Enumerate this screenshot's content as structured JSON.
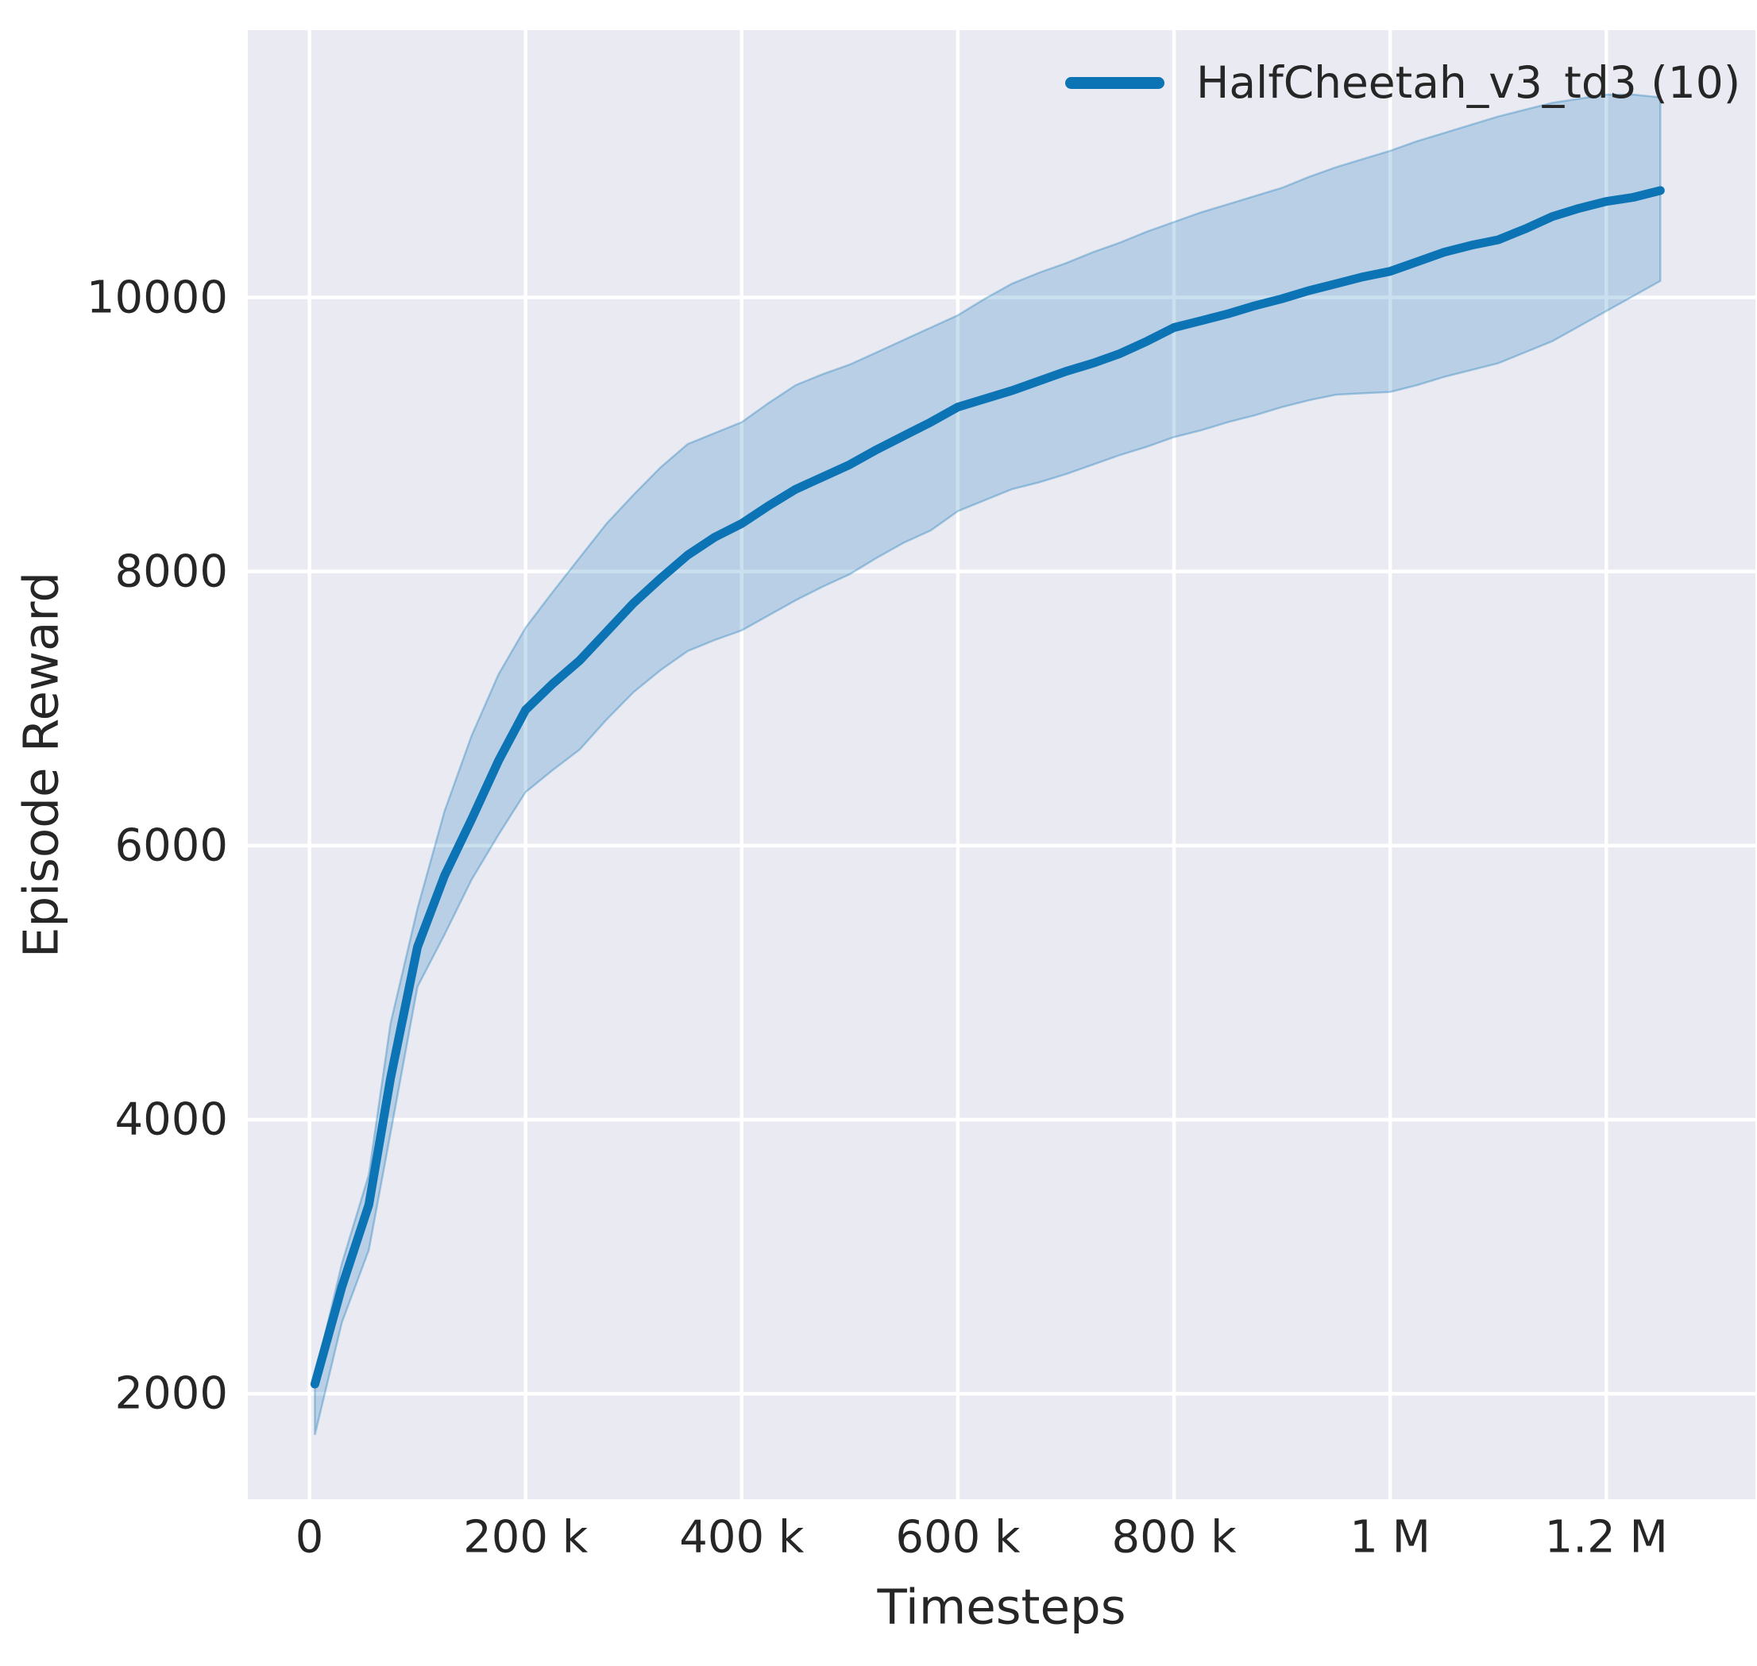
{
  "figure": {
    "xlabel": "Timesteps",
    "ylabel": "Episode Reward",
    "legend": {
      "label": "HalfCheetah_v3_td3 (10)"
    }
  },
  "chart_data": {
    "type": "line",
    "title": "",
    "xlabel": "Timesteps",
    "ylabel": "Episode Reward",
    "grid": true,
    "legend_position": "upper right",
    "plot_background": "#eaeaf2",
    "grid_color": "#ffffff",
    "text_color": "#262626",
    "xlim": [
      -57000,
      1338000
    ],
    "ylim": [
      1230,
      11950
    ],
    "x_ticks": [
      0,
      200000,
      400000,
      600000,
      800000,
      1000000,
      1200000
    ],
    "x_tick_labels": [
      "0",
      "200 k",
      "400 k",
      "600 k",
      "800 k",
      "1 M",
      "1.2 M"
    ],
    "y_ticks": [
      2000,
      4000,
      6000,
      8000,
      10000
    ],
    "y_tick_labels": [
      "2000",
      "4000",
      "6000",
      "8000",
      "10000"
    ],
    "series": [
      {
        "name": "HalfCheetah_v3_td3 (10)",
        "color": "#0c73b4",
        "band_fill_opacity": 0.22,
        "band_edge_opacity": 0.32,
        "x": [
          5000,
          30000,
          55000,
          75000,
          100000,
          125000,
          150000,
          175000,
          200000,
          225000,
          250000,
          275000,
          300000,
          325000,
          350000,
          375000,
          400000,
          425000,
          450000,
          475000,
          500000,
          525000,
          550000,
          575000,
          600000,
          625000,
          650000,
          675000,
          700000,
          725000,
          750000,
          775000,
          800000,
          825000,
          850000,
          875000,
          900000,
          925000,
          950000,
          975000,
          1000000,
          1025000,
          1050000,
          1075000,
          1100000,
          1125000,
          1150000,
          1175000,
          1200000,
          1225000,
          1250000
        ],
        "mean": [
          2070,
          2780,
          3380,
          4300,
          5260,
          5780,
          6190,
          6620,
          6990,
          7180,
          7350,
          7560,
          7770,
          7950,
          8120,
          8250,
          8350,
          8480,
          8600,
          8690,
          8780,
          8890,
          8990,
          9090,
          9200,
          9260,
          9320,
          9390,
          9460,
          9520,
          9590,
          9680,
          9780,
          9830,
          9880,
          9940,
          9990,
          10050,
          10100,
          10150,
          10190,
          10260,
          10330,
          10380,
          10420,
          10500,
          10590,
          10650,
          10700,
          10730,
          10780
        ],
        "band_low": [
          1700,
          2520,
          3050,
          3900,
          4970,
          5350,
          5750,
          6080,
          6390,
          6550,
          6700,
          6920,
          7120,
          7280,
          7420,
          7500,
          7570,
          7680,
          7790,
          7890,
          7980,
          8100,
          8210,
          8300,
          8440,
          8520,
          8600,
          8650,
          8710,
          8780,
          8850,
          8910,
          8980,
          9030,
          9090,
          9140,
          9200,
          9250,
          9290,
          9300,
          9310,
          9360,
          9420,
          9470,
          9520,
          9600,
          9680,
          9790,
          9900,
          10010,
          10120
        ],
        "band_high": [
          2120,
          2950,
          3600,
          4700,
          5540,
          6250,
          6800,
          7250,
          7590,
          7850,
          8100,
          8350,
          8560,
          8760,
          8930,
          9010,
          9090,
          9230,
          9360,
          9440,
          9510,
          9600,
          9690,
          9780,
          9870,
          9990,
          10100,
          10180,
          10250,
          10330,
          10400,
          10480,
          10550,
          10620,
          10680,
          10740,
          10800,
          10880,
          10950,
          11010,
          11070,
          11140,
          11200,
          11260,
          11320,
          11370,
          11420,
          11450,
          11480,
          11480,
          11460
        ]
      }
    ]
  }
}
